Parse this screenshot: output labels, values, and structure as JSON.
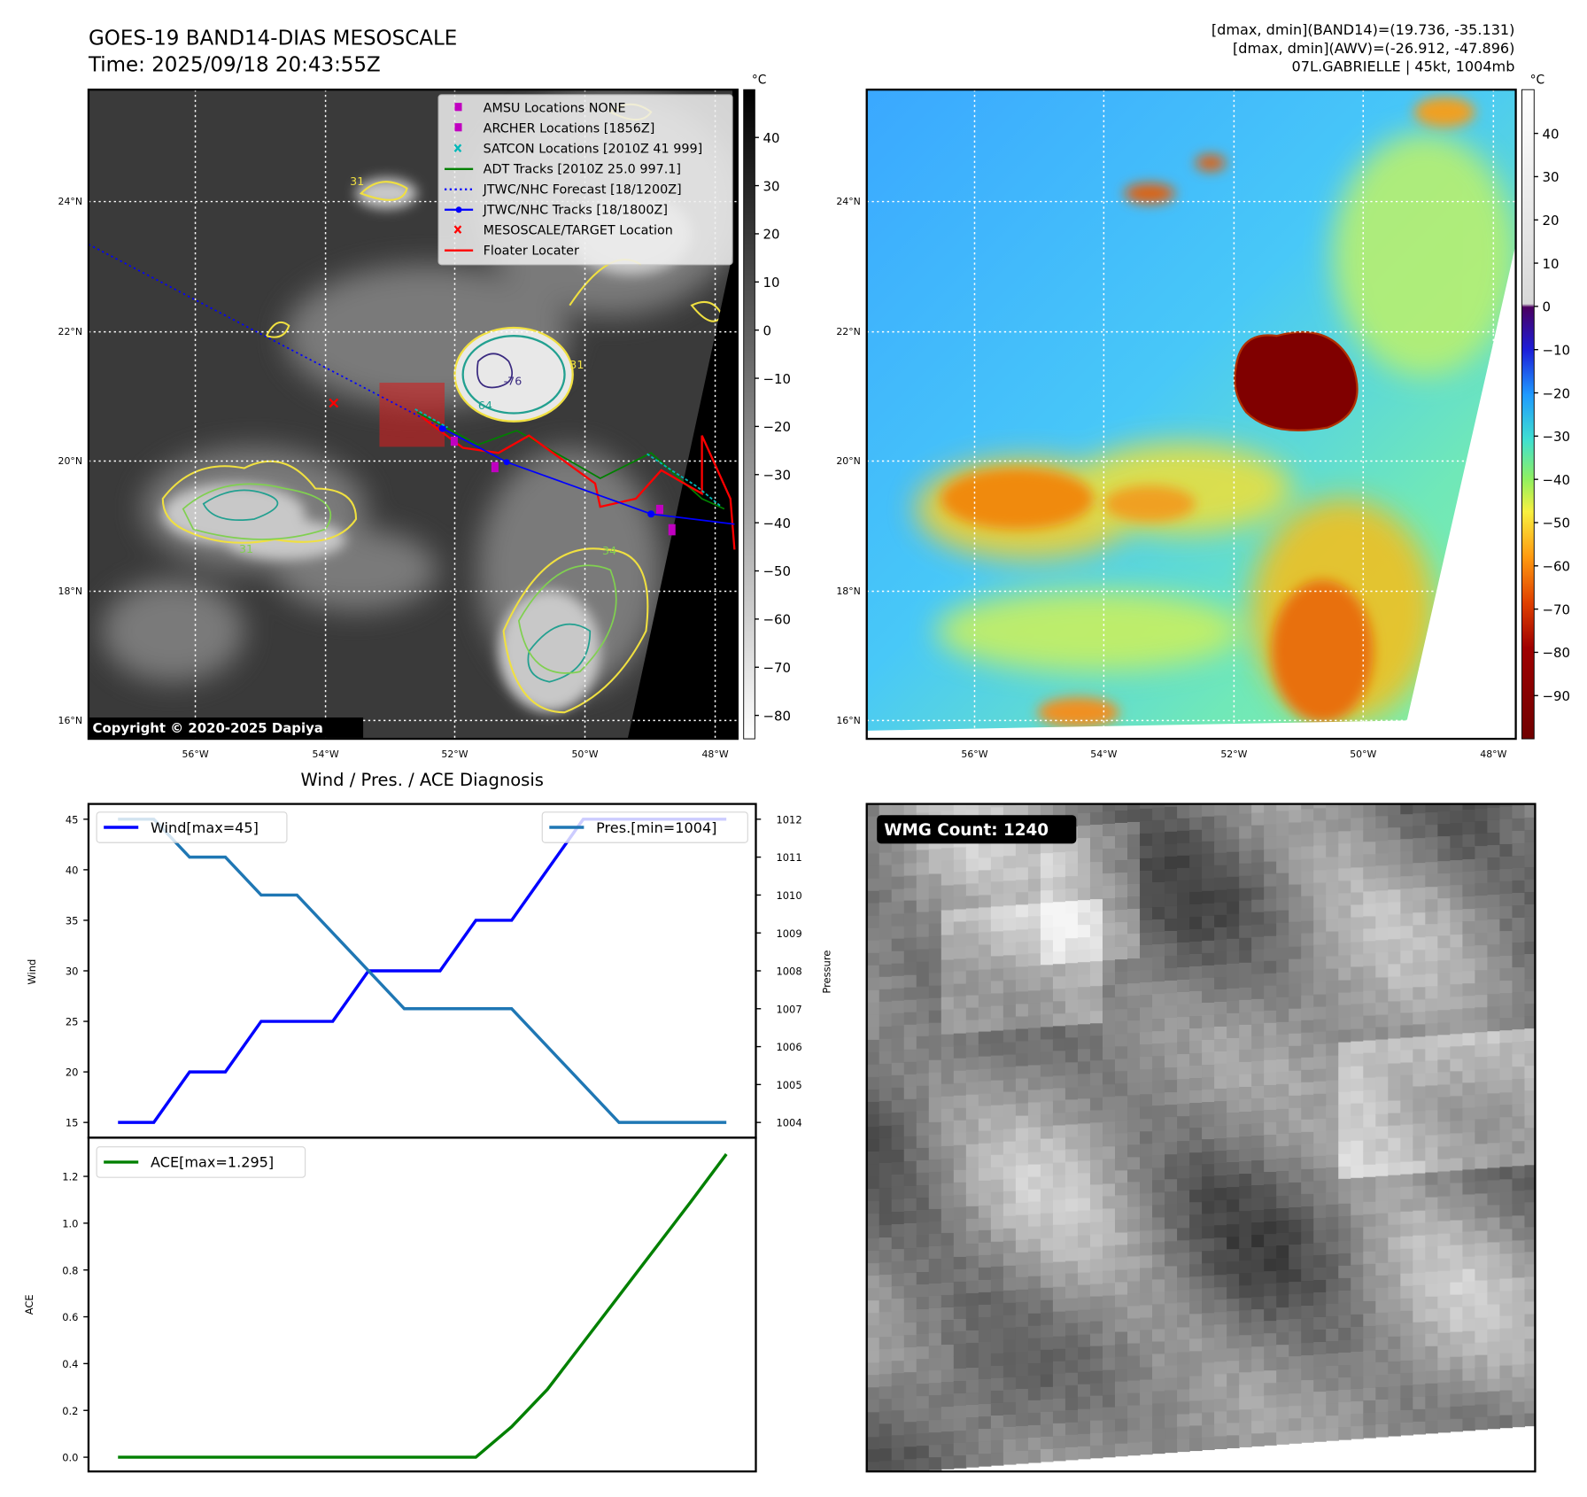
{
  "header": {
    "title": "GOES-19 BAND14-DIAS MESOSCALE",
    "time": "Time: 2025/09/18 20:43:55Z",
    "stats_line1": "[dmax, dmin](BAND14)=(19.736, -35.131)",
    "stats_line2": "[dmax, dmin](AWV)=(-26.912, -47.896)",
    "storm_line": "07L.GABRIELLE | 45kt, 1004mb"
  },
  "left_map": {
    "lat_labels": [
      "24°N",
      "22°N",
      "20°N",
      "18°N",
      "16°N"
    ],
    "lon_labels": [
      "56°W",
      "54°W",
      "52°W",
      "50°W",
      "48°W"
    ],
    "colorbar_unit": "°C",
    "colorbar_ticks": [
      "40",
      "30",
      "20",
      "10",
      "0",
      "−10",
      "−20",
      "−30",
      "−40",
      "−50",
      "−60",
      "−70",
      "−80"
    ],
    "copyright": "Copyright © 2020-2025 Dapiya",
    "contour_labels": [
      "31",
      "-76",
      "64",
      "31",
      "34",
      "31"
    ],
    "legend": [
      {
        "label": "AMSU Locations NONE",
        "color": "#c000c0",
        "icon": "square-marker"
      },
      {
        "label": "ARCHER Locations [1856Z]",
        "color": "#c000c0",
        "icon": "square-marker"
      },
      {
        "label": "SATCON Locations [2010Z 41 999]",
        "color": "#00b8b8",
        "icon": "x-marker"
      },
      {
        "label": "ADT Tracks [2010Z 25.0 997.1]",
        "color": "#008000",
        "icon": "line"
      },
      {
        "label": "JTWC/NHC Forecast [18/1200Z]",
        "color": "#0000ff",
        "icon": "dotted-line"
      },
      {
        "label": "JTWC/NHC Tracks [18/1800Z]",
        "color": "#0000ff",
        "icon": "line-dot"
      },
      {
        "label": "MESOSCALE/TARGET Location",
        "color": "#ff0000",
        "icon": "x-marker"
      },
      {
        "label": "Floater Locater",
        "color": "#ff0000",
        "icon": "line"
      }
    ]
  },
  "right_map": {
    "lat_labels": [
      "24°N",
      "22°N",
      "20°N",
      "18°N",
      "16°N"
    ],
    "lon_labels": [
      "56°W",
      "54°W",
      "52°W",
      "50°W",
      "48°W"
    ],
    "colorbar_unit": "°C",
    "colorbar_ticks": [
      "40",
      "30",
      "20",
      "10",
      "0",
      "−10",
      "−20",
      "−30",
      "−40",
      "−50",
      "−60",
      "−70",
      "−80",
      "−90"
    ]
  },
  "wmg_panel": {
    "label": "WMG Count: 1240"
  },
  "chart_data": [
    {
      "type": "line",
      "title": "Wind / Pres. / ACE Diagnosis",
      "ylabel": "Wind",
      "ylabel_right": "Pressure",
      "ylim": [
        14,
        46.5
      ],
      "ylim_right": [
        1003.7,
        1012.4
      ],
      "yticks": [
        15,
        20,
        25,
        30,
        35,
        40,
        45
      ],
      "yticks_right": [
        1004,
        1005,
        1006,
        1007,
        1008,
        1009,
        1010,
        1011,
        1012
      ],
      "x": [
        0,
        1,
        2,
        3,
        4,
        5,
        6,
        7,
        8,
        9,
        10,
        11,
        12,
        13,
        14,
        15,
        16,
        17
      ],
      "series": [
        {
          "name": "Wind[max=45]",
          "color": "#0000ff",
          "axis": "left",
          "values": [
            15,
            15,
            20,
            20,
            25,
            25,
            25,
            30,
            30,
            30,
            35,
            35,
            40,
            45,
            45,
            45,
            45,
            45
          ]
        },
        {
          "name": "Pres.[min=1004]",
          "color": "#1f77b4",
          "axis": "right",
          "values": [
            1012,
            1012,
            1011,
            1011,
            1010,
            1010,
            1009,
            1008,
            1007,
            1007,
            1007,
            1007,
            1006,
            1005,
            1004,
            1004,
            1004,
            1004
          ]
        }
      ],
      "legend": [
        "top-left",
        "top-right"
      ]
    },
    {
      "type": "line",
      "ylabel": "ACE",
      "ylim": [
        -0.06,
        1.365
      ],
      "yticks": [
        "0.0",
        "0.2",
        "0.4",
        "0.6",
        "0.8",
        "1.0",
        "1.2"
      ],
      "x": [
        0,
        1,
        2,
        3,
        4,
        5,
        6,
        7,
        8,
        9,
        10,
        11,
        12,
        13,
        14,
        15,
        16,
        17
      ],
      "series": [
        {
          "name": "ACE[max=1.295]",
          "color": "#008000",
          "values": [
            0,
            0,
            0,
            0,
            0,
            0,
            0,
            0,
            0,
            0,
            0,
            0.13,
            0.29,
            0.49,
            0.69,
            0.89,
            1.09,
            1.295
          ]
        }
      ],
      "legend": "top-left"
    }
  ]
}
